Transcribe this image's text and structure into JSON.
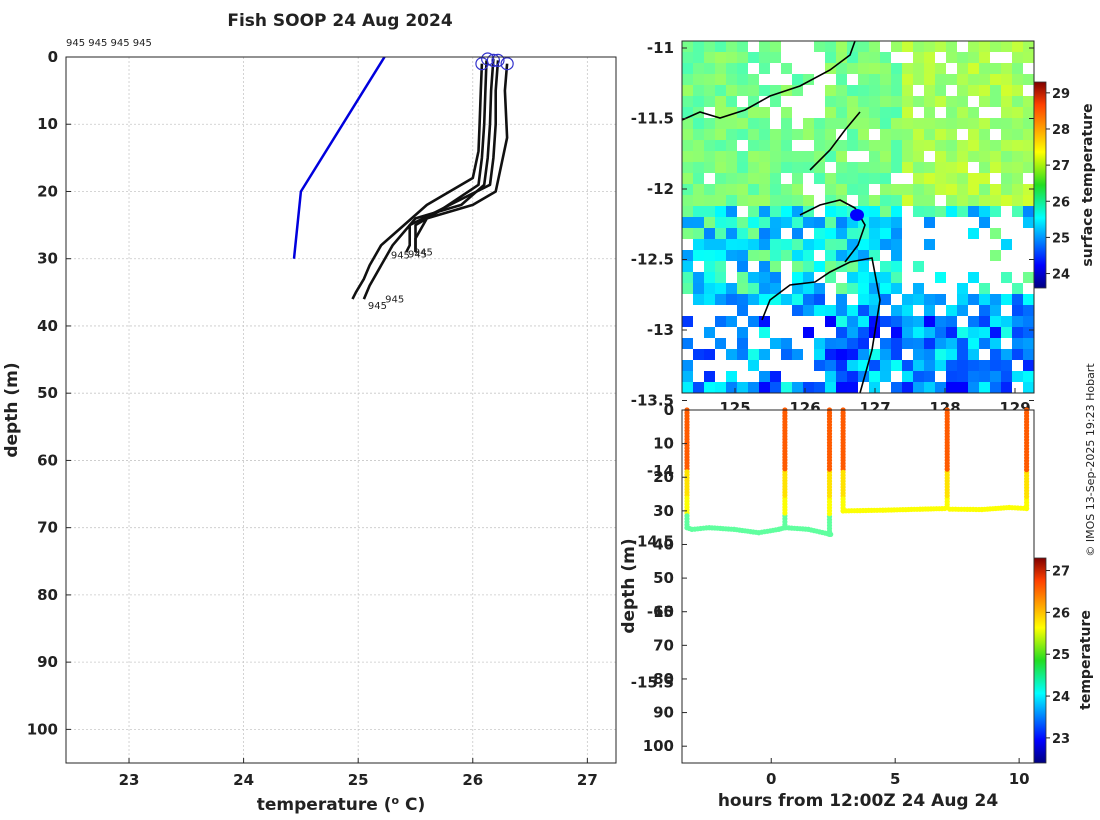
{
  "title": "Fish SOOP 24 Aug 2024",
  "top_label": "945 945 945 945",
  "credit": "© IMOS 13-Sep-2025 19:23 Hobart",
  "colors": {
    "profile": "#111111",
    "climatology": "#0000dd",
    "marker": "#3333cc"
  },
  "chart_data": [
    {
      "type": "line",
      "panel": "profiles",
      "xlabel": "temperature (° C)",
      "ylabel": "depth (m)",
      "xlim": [
        22.45,
        27.25
      ],
      "ylim": [
        105,
        0
      ],
      "xticks": [
        "23",
        "24",
        "25",
        "26",
        "27"
      ],
      "yticks": [
        "0",
        "10",
        "20",
        "30",
        "40",
        "50",
        "60",
        "70",
        "80",
        "90",
        "100"
      ],
      "series": [
        {
          "name": "climatology",
          "temperature": [
            25.23,
            24.5,
            24.44
          ],
          "depth": [
            0,
            20,
            30
          ]
        },
        {
          "name": "profile 1",
          "temperature": [
            26.08,
            26.07,
            26.06,
            26.05,
            26.0,
            25.6,
            25.4,
            25.2,
            25.1,
            25.05,
            24.98,
            24.95
          ],
          "depth": [
            1,
            5,
            10,
            14,
            18,
            22,
            25,
            28,
            31,
            33,
            35,
            36
          ]
        },
        {
          "name": "profile 2",
          "temperature": [
            26.12,
            26.11,
            26.1,
            26.08,
            26.05,
            25.7,
            25.5,
            25.5
          ],
          "depth": [
            0.5,
            5,
            10,
            15,
            19,
            23,
            25,
            29
          ]
        },
        {
          "name": "profile 3",
          "temperature": [
            26.18,
            26.16,
            26.15,
            26.13,
            26.1,
            25.9,
            25.5,
            25.3,
            25.2,
            25.1,
            25.05
          ],
          "depth": [
            0.3,
            5,
            10,
            15,
            19,
            22,
            24,
            28,
            31,
            34,
            36
          ]
        },
        {
          "name": "profile 4",
          "temperature": [
            26.22,
            26.2,
            26.2,
            26.18,
            26.15,
            25.8,
            25.45,
            25.45,
            25.42
          ],
          "depth": [
            0.5,
            5,
            10,
            15,
            19,
            22,
            25,
            28,
            29
          ]
        },
        {
          "name": "profile 5",
          "temperature": [
            26.3,
            26.28,
            26.3,
            26.25,
            26.2,
            26.0,
            25.6,
            25.5,
            25.5
          ],
          "depth": [
            1,
            5,
            12,
            16,
            20,
            22,
            24,
            27,
            29
          ]
        }
      ],
      "surface_markers": [
        [
          26.08,
          1
        ],
        [
          26.13,
          0.3
        ],
        [
          26.18,
          0.5
        ],
        [
          26.22,
          0.5
        ],
        [
          26.3,
          1
        ]
      ],
      "annotations": [
        "945",
        "945",
        "945",
        "945",
        "945"
      ]
    },
    {
      "type": "heatmap",
      "panel": "surface temperature map",
      "xticks": [
        "125",
        "126",
        "127",
        "128",
        "129"
      ],
      "yticks": [
        "-11",
        "-11.5",
        "-12",
        "-12.5",
        "-13",
        "-13.5",
        "-14",
        "-14.5",
        "-15",
        "-15.5"
      ],
      "colorbar": {
        "label": "surface temperature",
        "range": [
          23.6,
          29.3
        ],
        "ticks": [
          "24",
          "25",
          "26",
          "27",
          "28",
          "29"
        ]
      }
    },
    {
      "type": "scatter",
      "panel": "depth time series",
      "xlabel": "hours from 12:00Z 24 Aug 24",
      "ylabel": "depth (m)",
      "xlim": [
        -3.6,
        10.6
      ],
      "ylim": [
        105,
        0
      ],
      "xticks": [
        "0",
        "5",
        "10"
      ],
      "yticks": [
        "0",
        "10",
        "20",
        "30",
        "40",
        "50",
        "60",
        "70",
        "80",
        "90",
        "100"
      ],
      "segments": [
        {
          "hours": [
            -3.4,
            -3.4,
            -3.2,
            -2.5,
            -1.5,
            -0.5,
            0.3,
            0.55
          ],
          "depth": [
            0,
            35,
            35.5,
            35,
            35.5,
            36.5,
            35.5,
            35
          ]
        },
        {
          "hours": [
            0.55,
            0.55
          ],
          "depth": [
            35,
            0
          ]
        },
        {
          "hours": [
            0.6,
            1.5,
            2.4
          ],
          "depth": [
            35,
            35.5,
            37
          ]
        },
        {
          "hours": [
            2.35,
            2.35
          ],
          "depth": [
            37,
            0
          ]
        },
        {
          "hours": [
            2.9,
            2.9
          ],
          "depth": [
            0,
            30
          ]
        },
        {
          "hours": [
            2.9,
            4.5,
            6.0,
            7.0
          ],
          "depth": [
            30,
            29.8,
            29.5,
            29.3
          ]
        },
        {
          "hours": [
            7.1,
            7.1
          ],
          "depth": [
            29,
            0
          ]
        },
        {
          "hours": [
            7.2,
            8.5,
            9.6,
            10.3
          ],
          "depth": [
            29.5,
            29.6,
            29,
            29.3
          ]
        },
        {
          "hours": [
            10.3,
            10.3
          ],
          "depth": [
            29.3,
            0
          ]
        }
      ],
      "colorbar": {
        "label": "temperature",
        "range": [
          22.4,
          27.3
        ],
        "ticks": [
          "23",
          "24",
          "25",
          "26",
          "27"
        ]
      }
    }
  ]
}
